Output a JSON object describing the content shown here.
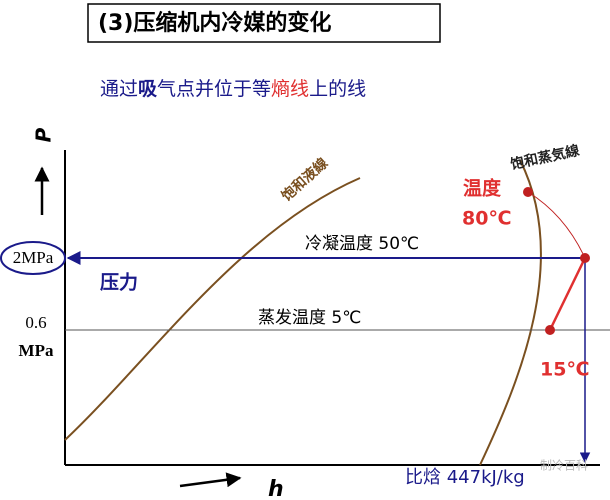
{
  "header": {
    "title": "(3)压缩机内冷媒的变化"
  },
  "subtitle": {
    "segments": [
      "通过",
      "吸",
      "气点并位于等",
      "熵线",
      "上的线"
    ]
  },
  "axes": {
    "y_label": "P",
    "x_label": "h"
  },
  "curves": {
    "liquid": "饱和液線",
    "vapor": "饱和蒸気線"
  },
  "pressure": {
    "high": "2MPa",
    "low_value": "0.6",
    "low_unit": "MPa",
    "name": "压力"
  },
  "lines": {
    "condensing": "冷凝温度  50℃",
    "evaporating": "蒸发温度  5℃"
  },
  "points": {
    "temp_label": "温度",
    "discharge": "80℃",
    "suction": "15℃"
  },
  "enthalpy": "比焓  447kJ/kg",
  "watermark": "制冷百科"
}
